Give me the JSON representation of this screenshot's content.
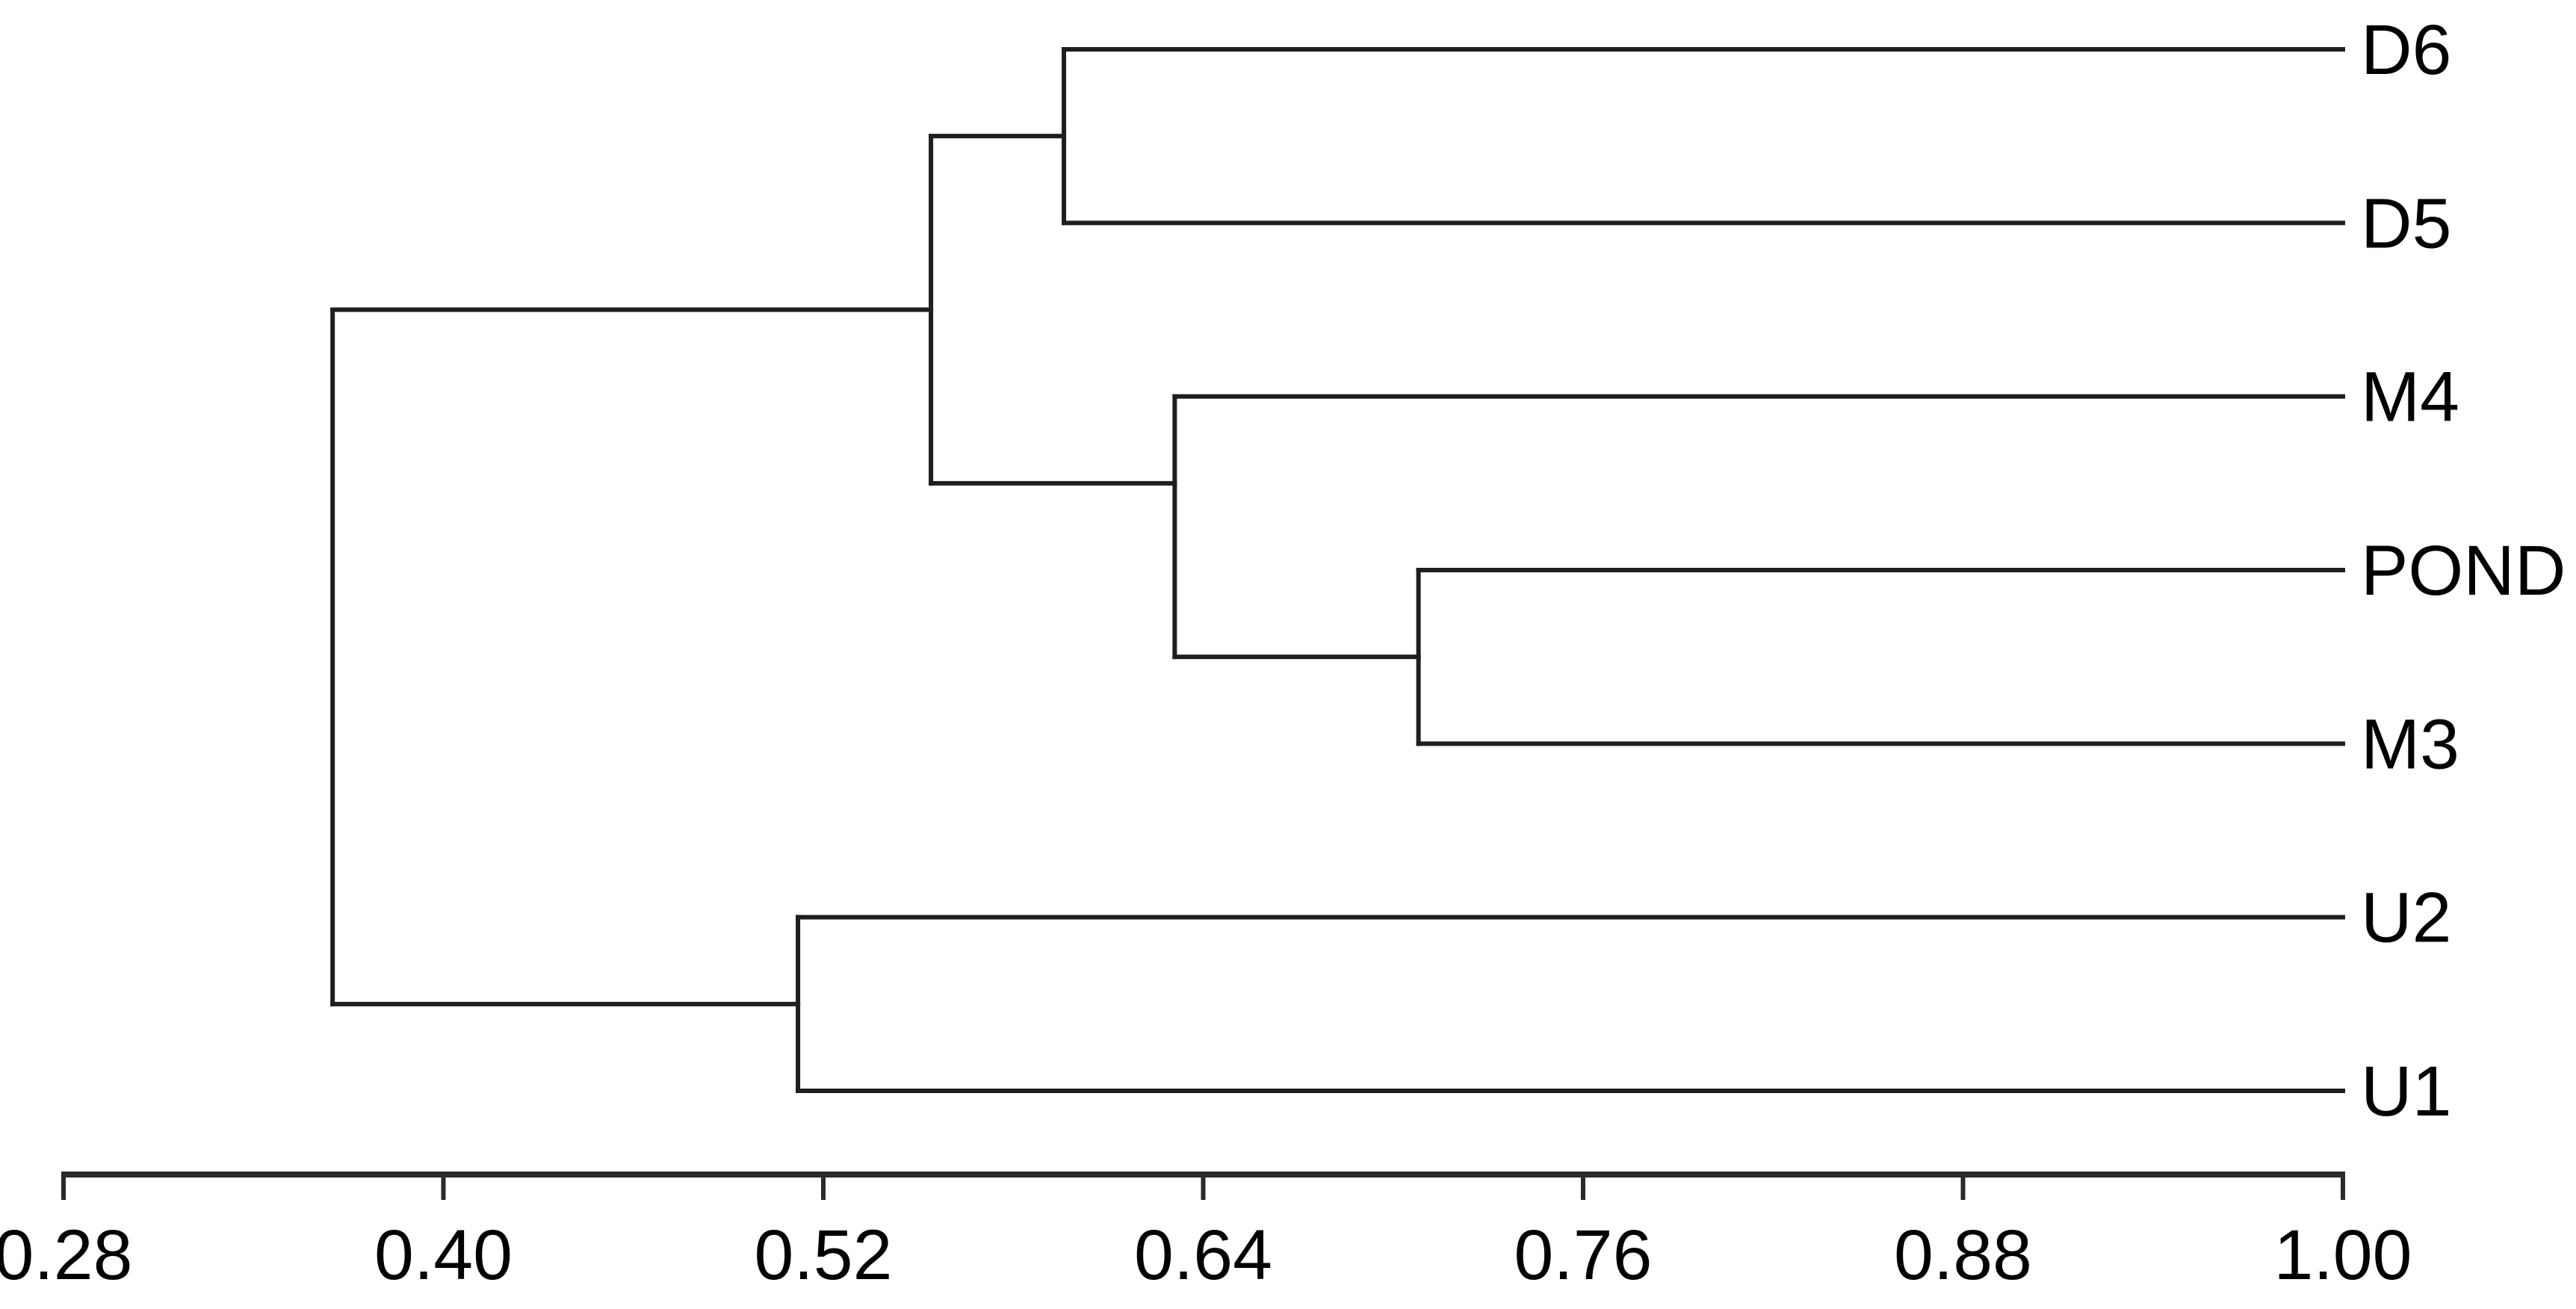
{
  "chart_data": {
    "type": "dendrogram",
    "subtype": "horizontal-root-left",
    "title": "",
    "xlabel": "",
    "ylabel": "",
    "background": "#ffffff",
    "line_color": "#1e1e1e",
    "axis": {
      "position": "bottom",
      "min": 0.28,
      "max": 1.0,
      "leaf_value": 1.0,
      "tick_values": [
        0.28,
        0.4,
        0.52,
        0.64,
        0.76,
        0.88,
        1.0
      ],
      "tick_labels": [
        "0.28",
        "0.40",
        "0.52",
        "0.64",
        "0.76",
        "0.88",
        "1.00"
      ]
    },
    "leaves": [
      {
        "label": "D6",
        "pos": 1
      },
      {
        "label": "D5",
        "pos": 2
      },
      {
        "label": "M4",
        "pos": 3
      },
      {
        "label": "POND",
        "pos": 4
      },
      {
        "label": "M3",
        "pos": 5
      },
      {
        "label": "U2",
        "pos": 6
      },
      {
        "label": "U1",
        "pos": 7
      }
    ],
    "merges": [
      {
        "id": "A",
        "children": [
          "D6",
          "D5"
        ],
        "similarity": 0.596,
        "link_pos": 1.5
      },
      {
        "id": "B",
        "children": [
          "POND",
          "M3"
        ],
        "similarity": 0.708,
        "link_pos": 4.5
      },
      {
        "id": "C",
        "children": [
          "M4",
          "B"
        ],
        "similarity": 0.631,
        "link_pos": 3.5
      },
      {
        "id": "D",
        "children": [
          "A",
          "C"
        ],
        "similarity": 0.554,
        "link_pos": 2.5
      },
      {
        "id": "E",
        "children": [
          "U2",
          "U1"
        ],
        "similarity": 0.512,
        "link_pos": 6.5
      },
      {
        "id": "ROOT",
        "children": [
          "D",
          "E"
        ],
        "similarity": 0.365,
        "link_pos": 4.5
      }
    ]
  }
}
